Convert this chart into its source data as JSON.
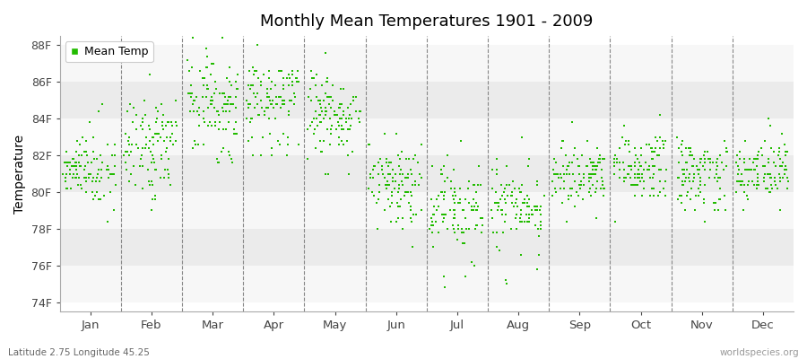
{
  "title": "Monthly Mean Temperatures 1901 - 2009",
  "ylabel": "Temperature",
  "xlabel_labels": [
    "Jan",
    "Feb",
    "Mar",
    "Apr",
    "May",
    "Jun",
    "Jul",
    "Aug",
    "Sep",
    "Oct",
    "Nov",
    "Dec"
  ],
  "ylim": [
    73.5,
    88.5
  ],
  "yticks": [
    74,
    76,
    78,
    80,
    82,
    84,
    86,
    88
  ],
  "ytick_labels": [
    "74F",
    "76F",
    "78F",
    "80F",
    "82F",
    "84F",
    "86F",
    "88F"
  ],
  "dot_color": "#22BB00",
  "background_color": "#FFFFFF",
  "band_light": "#EBEBEB",
  "band_dark": "#F7F7F7",
  "vline_color": "#888888",
  "legend_label": "Mean Temp",
  "footer_left": "Latitude 2.75 Longitude 45.25",
  "footer_right": "worldspecies.org",
  "monthly_means": [
    81.3,
    82.5,
    84.5,
    85.0,
    84.0,
    80.5,
    79.0,
    79.2,
    80.8,
    81.3,
    81.0,
    81.2
  ],
  "monthly_stds": [
    0.9,
    1.2,
    1.3,
    1.2,
    1.1,
    1.0,
    1.2,
    1.0,
    0.8,
    0.9,
    0.9,
    0.8
  ],
  "monthly_mins": [
    79.0,
    79.5,
    82.0,
    82.5,
    81.5,
    77.5,
    74.0,
    75.0,
    79.0,
    79.0,
    79.0,
    79.5
  ],
  "monthly_maxs": [
    83.5,
    85.0,
    87.5,
    87.5,
    86.0,
    82.5,
    82.0,
    81.5,
    83.5,
    83.5,
    83.0,
    83.0
  ],
  "n_years": 109,
  "seed": 42
}
